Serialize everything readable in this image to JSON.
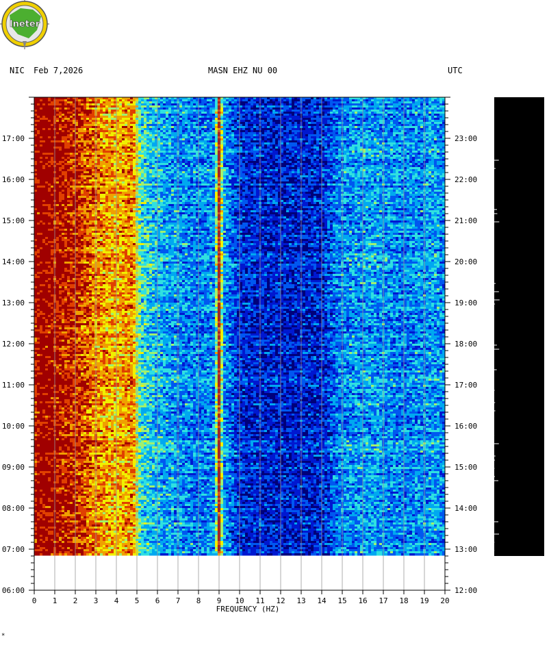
{
  "header": {
    "network": "NIC",
    "date": "Feb 7,2026",
    "station": "MASN EHZ NU 00",
    "timezone": "UTC"
  },
  "logo": {
    "text": "Ineter",
    "colors": {
      "ring": "#f0d000",
      "land": "#4caf30",
      "text_fill": "#ffffff"
    }
  },
  "footer_mark": "*",
  "chart_data": {
    "type": "heatmap",
    "title": "MASN EHZ NU 00",
    "xlabel": "FREQUENCY (HZ)",
    "ylabel": "",
    "xlim": [
      0,
      20
    ],
    "x_ticks": [
      0,
      1,
      2,
      3,
      4,
      5,
      6,
      7,
      8,
      9,
      10,
      11,
      12,
      13,
      14,
      15,
      16,
      17,
      18,
      19,
      20
    ],
    "y_ticks_left": [
      "06:00",
      "07:00",
      "08:00",
      "09:00",
      "10:00",
      "11:00",
      "12:00",
      "13:00",
      "14:00",
      "15:00",
      "16:00",
      "17:00"
    ],
    "y_ticks_right": [
      "12:00",
      "13:00",
      "14:00",
      "15:00",
      "16:00",
      "17:00",
      "18:00",
      "19:00",
      "20:00",
      "21:00",
      "22:00",
      "23:00"
    ],
    "time_range_local": [
      "06:00",
      "18:00"
    ],
    "data_start_local": "06:50",
    "colormap": [
      "#00007a",
      "#0018d0",
      "#0058f0",
      "#00a8f0",
      "#30e0e0",
      "#a0f070",
      "#f0f000",
      "#f0a000",
      "#e04000",
      "#a00000"
    ],
    "spectral_profile_hz": [
      {
        "f": 0.0,
        "level": 0.95
      },
      {
        "f": 0.4,
        "level": 1.0
      },
      {
        "f": 1.0,
        "level": 0.95
      },
      {
        "f": 2.0,
        "level": 0.9
      },
      {
        "f": 3.0,
        "level": 0.78
      },
      {
        "f": 4.0,
        "level": 0.72
      },
      {
        "f": 4.8,
        "level": 0.78
      },
      {
        "f": 5.2,
        "level": 0.45
      },
      {
        "f": 6.0,
        "level": 0.38
      },
      {
        "f": 7.0,
        "level": 0.33
      },
      {
        "f": 8.0,
        "level": 0.3
      },
      {
        "f": 8.8,
        "level": 0.32
      },
      {
        "f": 9.0,
        "level": 0.95
      },
      {
        "f": 9.2,
        "level": 0.35
      },
      {
        "f": 10.0,
        "level": 0.18
      },
      {
        "f": 12.0,
        "level": 0.15
      },
      {
        "f": 14.0,
        "level": 0.17
      },
      {
        "f": 15.0,
        "level": 0.32
      },
      {
        "f": 16.5,
        "level": 0.35
      },
      {
        "f": 18.0,
        "level": 0.3
      },
      {
        "f": 19.5,
        "level": 0.35
      },
      {
        "f": 20.0,
        "level": 0.3
      }
    ],
    "amplitude_trace_color": "#000000"
  }
}
